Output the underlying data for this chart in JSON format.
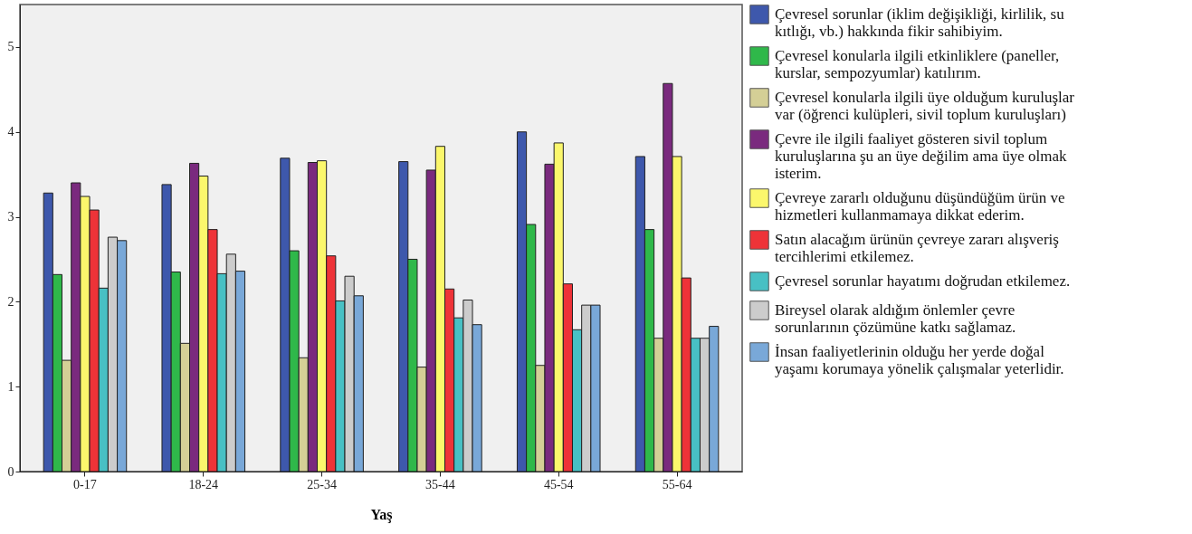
{
  "chart_data": {
    "type": "bar",
    "xlabel": "Yaş",
    "categories": [
      "0-17",
      "18-24",
      "25-34",
      "35-44",
      "45-54",
      "55-64"
    ],
    "ylim": [
      0,
      5.5
    ],
    "yticks": [
      0,
      1,
      2,
      3,
      4,
      5
    ],
    "grid": false,
    "legend": "right",
    "series": [
      {
        "name": "Çevresel sorunlar (iklim değişikliği, kirlilik, su kıtlığı, vb.)  hakkında fikir sahibiyim.",
        "color": "#3e58ac",
        "values": [
          3.28,
          3.38,
          3.69,
          3.65,
          4.0,
          3.71
        ]
      },
      {
        "name": "Çevresel konularla ilgili etkinliklere (paneller, kurslar, sempozyumlar) katılırım.",
        "color": "#2fb84a",
        "values": [
          2.32,
          2.35,
          2.6,
          2.5,
          2.91,
          2.85
        ]
      },
      {
        "name": "Çevresel konularla ilgili üye olduğum kuruluşlar var (öğrenci kulüpleri, sivil toplum kuruluşları)",
        "color": "#d4cf96",
        "values": [
          1.31,
          1.51,
          1.34,
          1.23,
          1.25,
          1.57
        ]
      },
      {
        "name": "Çevre ile ilgili faaliyet gösteren sivil toplum kuruluşlarına şu an üye değilim ama üye olmak isterim.",
        "color": "#7a2a7e",
        "values": [
          3.4,
          3.63,
          3.64,
          3.55,
          3.62,
          4.57
        ]
      },
      {
        "name": "Çevreye zararlı olduğunu düşündüğüm ürün ve hizmetleri kullanmamaya dikkat ederim.",
        "color": "#fbf76c",
        "values": [
          3.24,
          3.48,
          3.66,
          3.83,
          3.87,
          3.71
        ]
      },
      {
        "name": "Satın alacağım ürünün çevreye zararı alışveriş tercihlerimi etkilemez.",
        "color": "#ee3338",
        "values": [
          3.08,
          2.85,
          2.54,
          2.15,
          2.21,
          2.28
        ]
      },
      {
        "name": "Çevresel sorunlar hayatımı doğrudan etkilemez.",
        "color": "#48c0c4",
        "values": [
          2.16,
          2.33,
          2.01,
          1.81,
          1.67,
          1.57
        ]
      },
      {
        "name": "Bireysel olarak aldığım önlemler çevre sorunlarının çözümüne katkı sağlamaz.",
        "color": "#cccccc",
        "values": [
          2.76,
          2.56,
          2.3,
          2.02,
          1.96,
          1.57
        ]
      },
      {
        "name": "İnsan faaliyetlerinin olduğu her yerde doğal yaşamı korumaya yönelik çalışmalar yeterlidir.",
        "color": "#79a8d8",
        "values": [
          2.72,
          2.36,
          2.07,
          1.73,
          1.96,
          1.71
        ]
      }
    ]
  }
}
